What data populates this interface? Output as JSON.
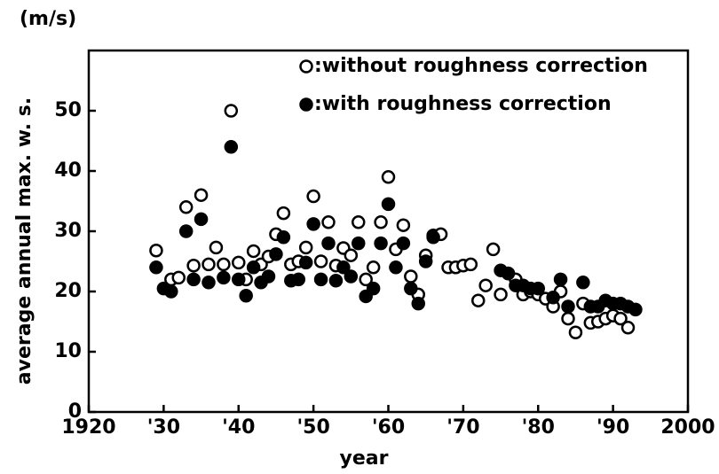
{
  "chart_data": {
    "type": "scatter",
    "unit": "(m/s)",
    "ylabel": "average  annual max. w. s.",
    "xlabel": "year",
    "xlim": [
      1920,
      2000
    ],
    "xticks": [
      1920,
      {
        "value": 1930,
        "label": "'30"
      },
      {
        "value": 1940,
        "label": "'40"
      },
      {
        "value": 1950,
        "label": "'50"
      },
      {
        "value": 1960,
        "label": "'60"
      },
      {
        "value": 1970,
        "label": "'70"
      },
      {
        "value": 1980,
        "label": "'80"
      },
      {
        "value": 1990,
        "label": "'90"
      },
      2000
    ],
    "ylim": [
      0,
      60
    ],
    "yticks": [
      0,
      10,
      20,
      30,
      40,
      50
    ],
    "series": [
      {
        "name": ":without roughness correction",
        "color": "#000",
        "marker": "open",
        "x": [
          1929,
          1931,
          1932,
          1933,
          1934,
          1935,
          1936,
          1937,
          1938,
          1939,
          1940,
          1941,
          1942,
          1943,
          1944,
          1945,
          1946,
          1947,
          1948,
          1949,
          1950,
          1951,
          1952,
          1953,
          1954,
          1955,
          1956,
          1957,
          1958,
          1959,
          1960,
          1961,
          1962,
          1963,
          1964,
          1965,
          1966,
          1967,
          1968,
          1969,
          1970,
          1971,
          1972,
          1973,
          1974,
          1975,
          1976,
          1977,
          1978,
          1979,
          1980,
          1981,
          1982,
          1983,
          1984,
          1985,
          1986,
          1987,
          1988,
          1989,
          1990,
          1991,
          1992
        ],
        "values": [
          26.8,
          22,
          22.3,
          34,
          24.3,
          36,
          24.5,
          27.3,
          24.5,
          50,
          24.8,
          22,
          26.7,
          24.5,
          25.8,
          29.5,
          33,
          24.5,
          25,
          27.3,
          35.8,
          25,
          31.5,
          24.3,
          27.2,
          26,
          31.5,
          22,
          24,
          31.5,
          39,
          27,
          31,
          22.5,
          19.5,
          26,
          29.3,
          29.5,
          24,
          24,
          24.3,
          24.5,
          18.5,
          21,
          27,
          19.5,
          23,
          22,
          19.5,
          20,
          19.5,
          18.8,
          17.5,
          20,
          15.5,
          13.2,
          18,
          14.8,
          15,
          15.5,
          16,
          15.5,
          14
        ]
      },
      {
        "name": ":with roughness correction",
        "color": "#000",
        "marker": "filled",
        "x": [
          1929,
          1930,
          1931,
          1933,
          1934,
          1935,
          1936,
          1938,
          1939,
          1940,
          1941,
          1942,
          1943,
          1944,
          1945,
          1946,
          1947,
          1948,
          1949,
          1950,
          1951,
          1952,
          1953,
          1954,
          1955,
          1956,
          1957,
          1958,
          1959,
          1960,
          1961,
          1962,
          1963,
          1964,
          1965,
          1966,
          1975,
          1976,
          1977,
          1978,
          1979,
          1980,
          1982,
          1983,
          1984,
          1986,
          1987,
          1988,
          1989,
          1990,
          1991,
          1992,
          1993
        ],
        "values": [
          24,
          20.5,
          20,
          30,
          22,
          32,
          21.5,
          22.3,
          44,
          22,
          19.3,
          24,
          21.5,
          22.5,
          26.2,
          29,
          21.8,
          22,
          24.8,
          31.2,
          22,
          28,
          21.8,
          24,
          22.5,
          28,
          19.2,
          20.5,
          28,
          34.5,
          24,
          28,
          20.5,
          18,
          25,
          29,
          23.5,
          23,
          21,
          21,
          20.5,
          20.5,
          19,
          22,
          17.5,
          21.5,
          17.5,
          17.5,
          18.5,
          18,
          18,
          17.5,
          17
        ]
      }
    ]
  }
}
